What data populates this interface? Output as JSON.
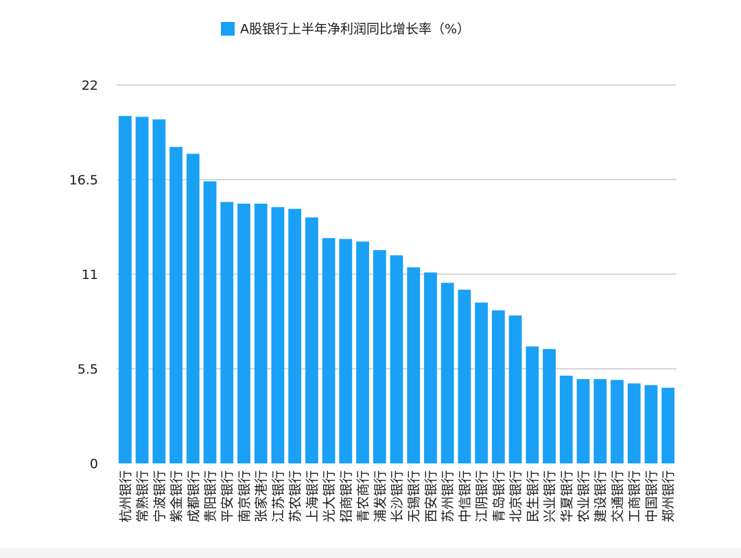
{
  "chart_data": {
    "type": "bar",
    "legend": {
      "label": "A股银行上半年净利润同比增长率（%）",
      "position": "top-center"
    },
    "y_axis": {
      "ylim": [
        0,
        22
      ],
      "ticks": [
        0,
        5.5,
        11,
        16.5,
        22
      ],
      "tick_labels": [
        "0",
        "5.5",
        "11",
        "16.5",
        "22"
      ],
      "grid": true
    },
    "categories": [
      "杭州银行",
      "常熟银行",
      "宁波银行",
      "紫金银行",
      "成都银行",
      "贵阳银行",
      "平安银行",
      "南京银行",
      "张家港行",
      "江苏银行",
      "苏农银行",
      "上海银行",
      "光大银行",
      "招商银行",
      "青农商行",
      "浦发银行",
      "长沙银行",
      "无锡银行",
      "西安银行",
      "苏州银行",
      "中信银行",
      "江阴银行",
      "青岛银行",
      "北京银行",
      "民生银行",
      "兴业银行",
      "华夏银行",
      "农业银行",
      "建设银行",
      "交通银行",
      "工商银行",
      "中国银行",
      "郑州银行"
    ],
    "values": [
      20.2,
      20.15,
      20.0,
      18.4,
      18.0,
      16.4,
      15.2,
      15.1,
      15.1,
      14.9,
      14.8,
      14.3,
      13.1,
      13.05,
      12.9,
      12.4,
      12.1,
      11.4,
      11.1,
      10.5,
      10.1,
      9.35,
      8.9,
      8.6,
      6.8,
      6.65,
      5.1,
      4.9,
      4.9,
      4.85,
      4.65,
      4.55,
      4.4
    ],
    "colors": {
      "bar": "#1aa0f5",
      "grid": "#c8c8c8",
      "axis_text": "#1a1a1a"
    }
  }
}
